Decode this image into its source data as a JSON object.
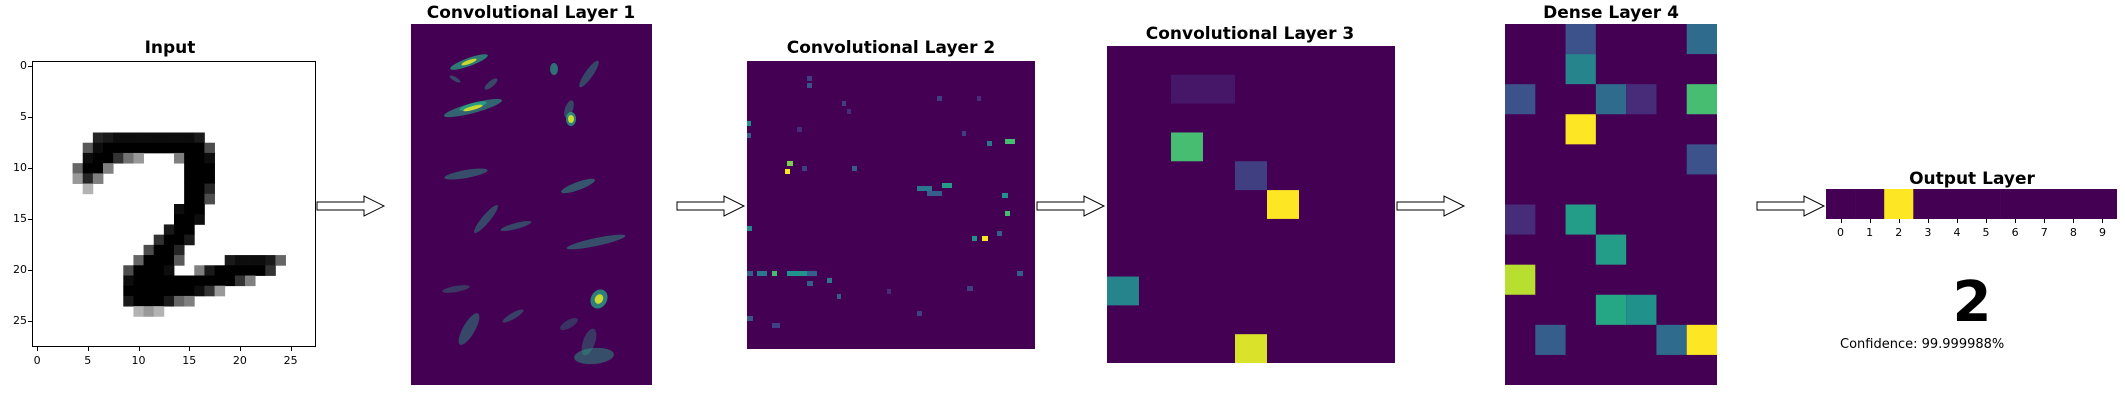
{
  "colors": {
    "viridis_low": "#440154",
    "viridis_high": "#fde725",
    "arrow_fill": "#ffffff",
    "arrow_stroke": "#000000"
  },
  "panels": {
    "input": {
      "title": "Input",
      "x_ticks": [
        "0",
        "5",
        "10",
        "15",
        "20",
        "25"
      ],
      "y_ticks": [
        "0",
        "5",
        "10",
        "15",
        "20",
        "25"
      ],
      "grid_size": 28,
      "dark_cells": [
        [
          7,
          6,
          0.15
        ],
        [
          7,
          7,
          0.1
        ],
        [
          7,
          8,
          0.05
        ],
        [
          7,
          9,
          0.05
        ],
        [
          7,
          10,
          0.05
        ],
        [
          7,
          11,
          0.05
        ],
        [
          7,
          12,
          0.05
        ],
        [
          7,
          13,
          0.05
        ],
        [
          7,
          14,
          0.05
        ],
        [
          7,
          15,
          0.05
        ],
        [
          7,
          16,
          0.1
        ],
        [
          8,
          5,
          0.35
        ],
        [
          8,
          6,
          0.05
        ],
        [
          8,
          7,
          0.0
        ],
        [
          8,
          8,
          0.0
        ],
        [
          8,
          9,
          0.0
        ],
        [
          8,
          10,
          0.0
        ],
        [
          8,
          11,
          0.0
        ],
        [
          8,
          12,
          0.0
        ],
        [
          8,
          13,
          0.0
        ],
        [
          8,
          14,
          0.0
        ],
        [
          8,
          15,
          0.0
        ],
        [
          8,
          16,
          0.0
        ],
        [
          8,
          17,
          0.3
        ],
        [
          9,
          5,
          0.05
        ],
        [
          9,
          6,
          0.0
        ],
        [
          9,
          7,
          0.0
        ],
        [
          9,
          8,
          0.2
        ],
        [
          9,
          9,
          0.45
        ],
        [
          9,
          10,
          0.6
        ],
        [
          9,
          14,
          0.5
        ],
        [
          9,
          15,
          0.0
        ],
        [
          9,
          16,
          0.0
        ],
        [
          9,
          17,
          0.05
        ],
        [
          10,
          4,
          0.4
        ],
        [
          10,
          5,
          0.0
        ],
        [
          10,
          6,
          0.0
        ],
        [
          10,
          7,
          0.5
        ],
        [
          10,
          15,
          0.0
        ],
        [
          10,
          16,
          0.0
        ],
        [
          10,
          17,
          0.0
        ],
        [
          11,
          4,
          0.6
        ],
        [
          11,
          5,
          0.15
        ],
        [
          11,
          6,
          0.5
        ],
        [
          11,
          15,
          0.0
        ],
        [
          11,
          16,
          0.0
        ],
        [
          11,
          17,
          0.0
        ],
        [
          12,
          5,
          0.7
        ],
        [
          12,
          15,
          0.0
        ],
        [
          12,
          16,
          0.0
        ],
        [
          12,
          17,
          0.15
        ],
        [
          13,
          15,
          0.0
        ],
        [
          13,
          16,
          0.0
        ],
        [
          13,
          17,
          0.3
        ],
        [
          14,
          14,
          0.05
        ],
        [
          14,
          15,
          0.0
        ],
        [
          14,
          16,
          0.0
        ],
        [
          15,
          14,
          0.0
        ],
        [
          15,
          15,
          0.0
        ],
        [
          15,
          16,
          0.05
        ],
        [
          16,
          13,
          0.1
        ],
        [
          16,
          14,
          0.0
        ],
        [
          16,
          15,
          0.0
        ],
        [
          17,
          12,
          0.2
        ],
        [
          17,
          13,
          0.0
        ],
        [
          17,
          14,
          0.0
        ],
        [
          17,
          15,
          0.1
        ],
        [
          18,
          11,
          0.3
        ],
        [
          18,
          12,
          0.0
        ],
        [
          18,
          13,
          0.0
        ],
        [
          18,
          14,
          0.15
        ],
        [
          19,
          10,
          0.4
        ],
        [
          19,
          11,
          0.0
        ],
        [
          19,
          12,
          0.0
        ],
        [
          19,
          13,
          0.0
        ],
        [
          19,
          14,
          0.35
        ],
        [
          19,
          19,
          0.1
        ],
        [
          19,
          20,
          0.05
        ],
        [
          19,
          21,
          0.05
        ],
        [
          19,
          22,
          0.05
        ],
        [
          19,
          23,
          0.1
        ],
        [
          19,
          24,
          0.4
        ],
        [
          20,
          9,
          0.3
        ],
        [
          20,
          10,
          0.0
        ],
        [
          20,
          11,
          0.0
        ],
        [
          20,
          12,
          0.0
        ],
        [
          20,
          13,
          0.05
        ],
        [
          20,
          16,
          0.5
        ],
        [
          20,
          17,
          0.1
        ],
        [
          20,
          18,
          0.0
        ],
        [
          20,
          19,
          0.0
        ],
        [
          20,
          20,
          0.0
        ],
        [
          20,
          21,
          0.0
        ],
        [
          20,
          22,
          0.0
        ],
        [
          20,
          23,
          0.2
        ],
        [
          21,
          9,
          0.05
        ],
        [
          21,
          10,
          0.0
        ],
        [
          21,
          11,
          0.0
        ],
        [
          21,
          12,
          0.0
        ],
        [
          21,
          13,
          0.0
        ],
        [
          21,
          14,
          0.0
        ],
        [
          21,
          15,
          0.0
        ],
        [
          21,
          16,
          0.0
        ],
        [
          21,
          17,
          0.0
        ],
        [
          21,
          18,
          0.0
        ],
        [
          21,
          19,
          0.0
        ],
        [
          21,
          20,
          0.2
        ],
        [
          21,
          21,
          0.5
        ],
        [
          22,
          9,
          0.0
        ],
        [
          22,
          10,
          0.0
        ],
        [
          22,
          11,
          0.0
        ],
        [
          22,
          12,
          0.0
        ],
        [
          22,
          13,
          0.0
        ],
        [
          22,
          14,
          0.0
        ],
        [
          22,
          15,
          0.0
        ],
        [
          22,
          16,
          0.05
        ],
        [
          22,
          17,
          0.2
        ],
        [
          22,
          18,
          0.6
        ],
        [
          23,
          9,
          0.1
        ],
        [
          23,
          10,
          0.0
        ],
        [
          23,
          11,
          0.0
        ],
        [
          23,
          12,
          0.0
        ],
        [
          23,
          13,
          0.1
        ],
        [
          23,
          14,
          0.4
        ],
        [
          23,
          15,
          0.5
        ],
        [
          24,
          10,
          0.7
        ],
        [
          24,
          11,
          0.6
        ],
        [
          24,
          12,
          0.7
        ]
      ]
    },
    "conv1": {
      "title": "Convolutional Layer 1"
    },
    "conv2": {
      "title": "Convolutional Layer 2"
    },
    "conv3": {
      "title": "Convolutional Layer 3",
      "grid": [
        9,
        10
      ],
      "cells": [
        [
          1,
          2,
          0.08
        ],
        [
          1,
          3,
          0.08
        ],
        [
          3,
          2,
          0.7
        ],
        [
          4,
          4,
          0.2
        ],
        [
          5,
          5,
          1.0
        ],
        [
          7,
          9,
          0.3
        ],
        [
          8,
          0,
          0.45
        ],
        [
          10,
          4,
          0.95
        ]
      ]
    },
    "dense4": {
      "title": "Dense Layer 4",
      "grid": [
        7,
        12
      ],
      "cells": [
        [
          0,
          2,
          0.25
        ],
        [
          0,
          6,
          0.35
        ],
        [
          1,
          2,
          0.45
        ],
        [
          2,
          0,
          0.25
        ],
        [
          2,
          3,
          0.35
        ],
        [
          2,
          4,
          0.15
        ],
        [
          2,
          6,
          0.7
        ],
        [
          3,
          2,
          1.0
        ],
        [
          4,
          6,
          0.25
        ],
        [
          6,
          0,
          0.15
        ],
        [
          6,
          2,
          0.55
        ],
        [
          7,
          3,
          0.55
        ],
        [
          8,
          0,
          0.9
        ],
        [
          9,
          3,
          0.6
        ],
        [
          9,
          4,
          0.5
        ],
        [
          10,
          1,
          0.3
        ],
        [
          10,
          5,
          0.35
        ],
        [
          10,
          6,
          1.0
        ]
      ]
    },
    "output": {
      "title": "Output Layer",
      "x_ticks": [
        "0",
        "1",
        "2",
        "3",
        "4",
        "5",
        "6",
        "7",
        "8",
        "9"
      ],
      "values": [
        0,
        0,
        1,
        0,
        0,
        0,
        0,
        0,
        0,
        0
      ],
      "prediction": "2",
      "confidence": "Confidence: 99.999988%"
    }
  }
}
